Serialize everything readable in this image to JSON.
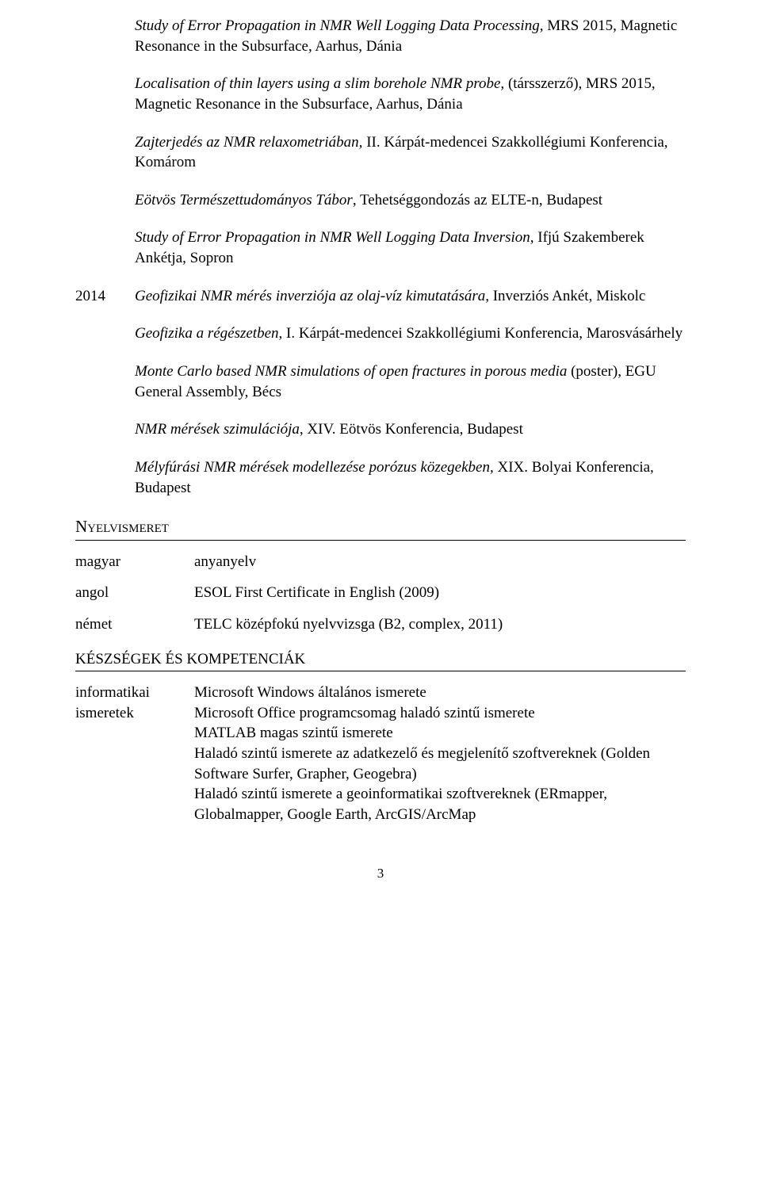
{
  "entries": [
    {
      "italic": "Study of Error Propagation in NMR Well Logging Data Processing,",
      "rest": " MRS 2015, Magnetic Resonance in the Subsurface, Aarhus, Dánia"
    },
    {
      "italic": "Localisation of thin layers using a slim borehole NMR probe,",
      "rest": " (társszerző), MRS 2015, Magnetic Resonance in the Subsurface, Aarhus, Dánia"
    },
    {
      "italic": "Zajterjedés az NMR relaxometriában,",
      "rest": " II. Kárpát-medencei Szakkollégiumi Konferencia, Komárom"
    },
    {
      "italic": "Eötvös Természettudományos Tábor",
      "rest": ", Tehetséggondozás az ELTE-n, Budapest"
    },
    {
      "italic": "Study of Error Propagation in NMR Well Logging Data Inversion,",
      "rest": " Ifjú Szakemberek Ankétja, Sopron"
    }
  ],
  "year2014": "2014",
  "entries2014": [
    {
      "italic": "Geofizikai NMR mérés inverziója az olaj-víz kimutatására,",
      "rest": " Inverziós Ankét, Miskolc"
    },
    {
      "italic": "Geofizika a régészetben",
      "rest": ", I. Kárpát-medencei Szakkollégiumi Konferencia, Marosvásárhely"
    },
    {
      "italic": "Monte Carlo based NMR simulations of open fractures in porous media",
      "rest": " (poster), EGU General Assembly, Bécs"
    },
    {
      "italic": "NMR mérések szimulációja",
      "rest": ", XIV. Eötvös Konferencia, Budapest"
    },
    {
      "italic": "Mélyfúrási NMR mérések modellezése porózus közegekben,",
      "rest": " XIX. Bolyai Konferencia, Budapest"
    }
  ],
  "sections": {
    "languages": "Nyelvismeret",
    "skills": "KÉSZSÉGEK ÉS KOMPETENCIÁK"
  },
  "languages": [
    {
      "label": "magyar",
      "value": "anyanyelv"
    },
    {
      "label": "angol",
      "value": "ESOL First Certificate in English (2009)"
    },
    {
      "label": "német",
      "value": "TELC középfokú nyelvvizsga (B2, complex, 2011)"
    }
  ],
  "skills": {
    "label1": "informatikai",
    "label2": "ismeretek",
    "lines": [
      "Microsoft Windows általános ismerete",
      "Microsoft Office programcsomag haladó szintű ismerete",
      "MATLAB magas szintű ismerete",
      "Haladó szintű ismerete az adatkezelő és megjelenítő szoftvereknek (Golden Software Surfer, Grapher, Geogebra)",
      "Haladó szintű ismerete a geoinformatikai szoftvereknek (ERmapper, Globalmapper, Google Earth, ArcGIS/ArcMap"
    ]
  },
  "pagenum": "3"
}
